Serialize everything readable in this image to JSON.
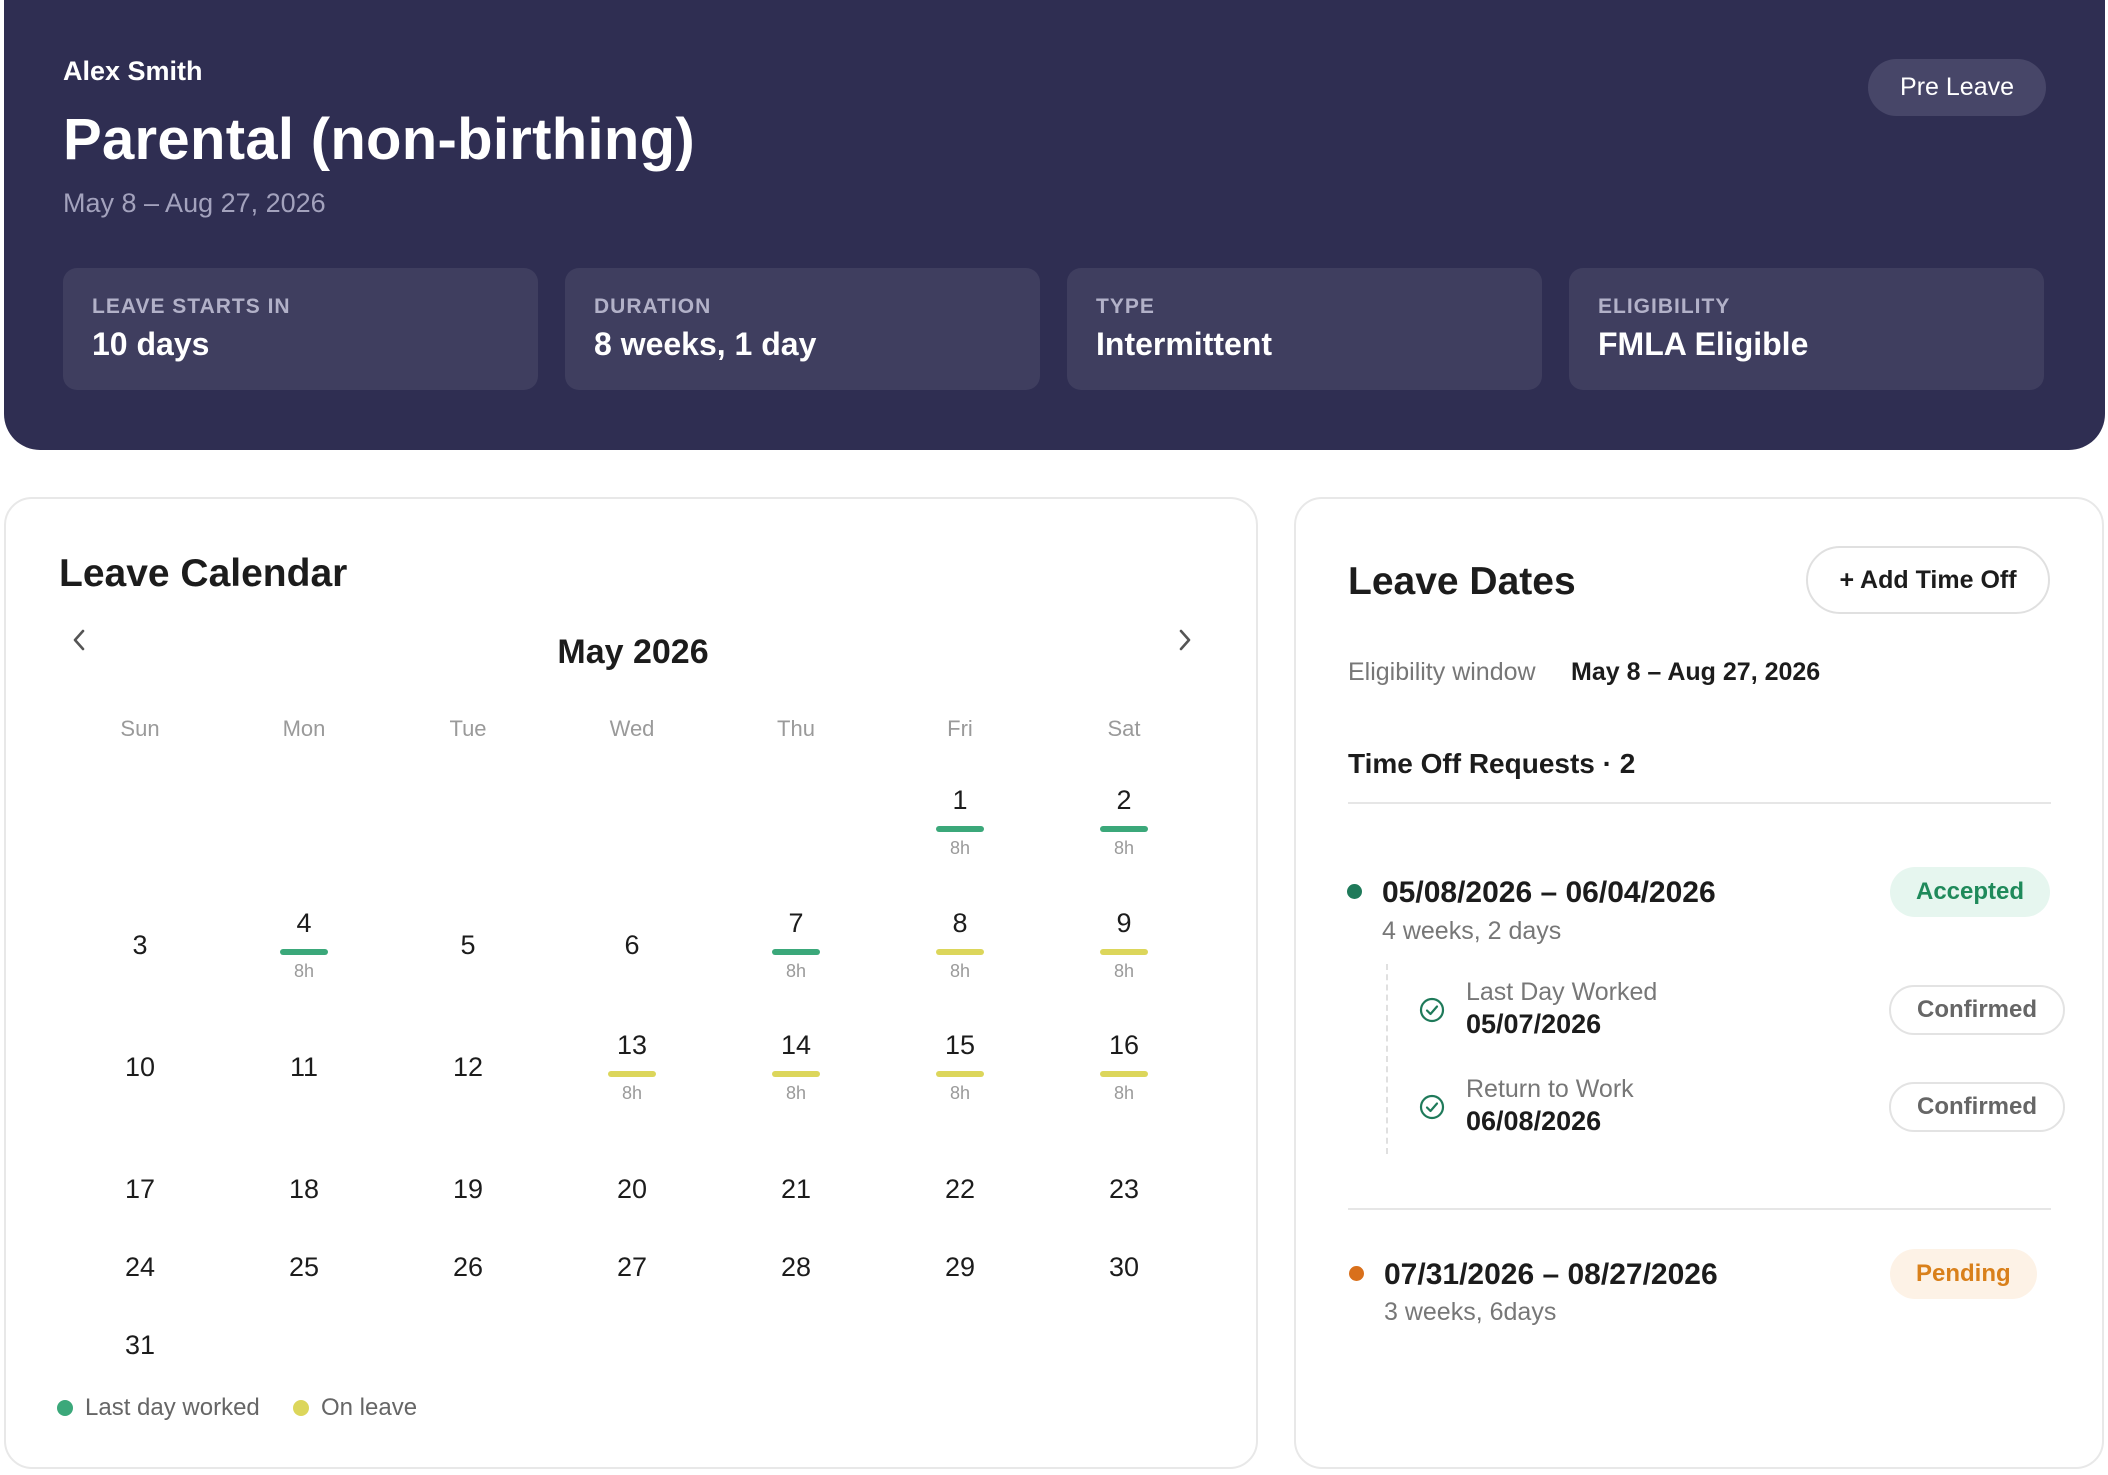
{
  "header": {
    "employee_name": "Alex Smith",
    "leave_title": "Parental (non-birthing)",
    "leave_range": "May 8 – Aug 27, 2026",
    "status": "Pre Leave",
    "stats": [
      {
        "label": "LEAVE STARTS IN",
        "value": "10 days"
      },
      {
        "label": "DURATION",
        "value": "8 weeks, 1 day"
      },
      {
        "label": "TYPE",
        "value": "Intermittent"
      },
      {
        "label": "ELIGIBILITY",
        "value": "FMLA Eligible"
      }
    ]
  },
  "calendar": {
    "title": "Leave Calendar",
    "month_label": "May 2026",
    "prev_icon": "chevron-left-icon",
    "next_icon": "chevron-right-icon",
    "weekdays": [
      "Sun",
      "Mon",
      "Tue",
      "Wed",
      "Thu",
      "Fri",
      "Sat"
    ],
    "days": [
      {
        "day": "1",
        "status": "worked",
        "hours": "8h"
      },
      {
        "day": "2",
        "status": "worked",
        "hours": "8h"
      },
      {
        "day": "3"
      },
      {
        "day": "4",
        "status": "worked",
        "hours": "8h"
      },
      {
        "day": "5"
      },
      {
        "day": "6"
      },
      {
        "day": "7",
        "status": "worked",
        "hours": "8h"
      },
      {
        "day": "8",
        "status": "leave",
        "hours": "8h"
      },
      {
        "day": "9",
        "status": "leave",
        "hours": "8h"
      },
      {
        "day": "10"
      },
      {
        "day": "11"
      },
      {
        "day": "12"
      },
      {
        "day": "13",
        "status": "leave",
        "hours": "8h"
      },
      {
        "day": "14",
        "status": "leave",
        "hours": "8h"
      },
      {
        "day": "15",
        "status": "leave",
        "hours": "8h"
      },
      {
        "day": "16",
        "status": "leave",
        "hours": "8h"
      },
      {
        "day": "17"
      },
      {
        "day": "18"
      },
      {
        "day": "19"
      },
      {
        "day": "20"
      },
      {
        "day": "21"
      },
      {
        "day": "22"
      },
      {
        "day": "23"
      },
      {
        "day": "24"
      },
      {
        "day": "25"
      },
      {
        "day": "26"
      },
      {
        "day": "27"
      },
      {
        "day": "28"
      },
      {
        "day": "29"
      },
      {
        "day": "30"
      },
      {
        "day": "31"
      }
    ],
    "legend": [
      {
        "label": "Last day worked",
        "color": "#3ba87a"
      },
      {
        "label": "On leave",
        "color": "#dcd65b"
      }
    ]
  },
  "leave_dates": {
    "title": "Leave Dates",
    "add_button": "+ Add Time Off",
    "eligibility_label": "Eligibility window",
    "eligibility_value": "May 8 – Aug 27, 2026",
    "requests_header": "Time Off Requests · 2",
    "requests": [
      {
        "range": "05/08/2026 – 06/04/2026",
        "duration": "4 weeks, 2 days",
        "status": "Accepted",
        "dot_color": "#1f7a5a",
        "milestones": [
          {
            "label": "Last Day Worked",
            "date": "05/07/2026",
            "status": "Confirmed"
          },
          {
            "label": "Return to Work",
            "date": "06/08/2026",
            "status": "Confirmed"
          }
        ]
      },
      {
        "range": "07/31/2026 – 08/27/2026",
        "duration": "3 weeks, 6days",
        "status": "Pending",
        "dot_color": "#d9701b"
      }
    ]
  }
}
